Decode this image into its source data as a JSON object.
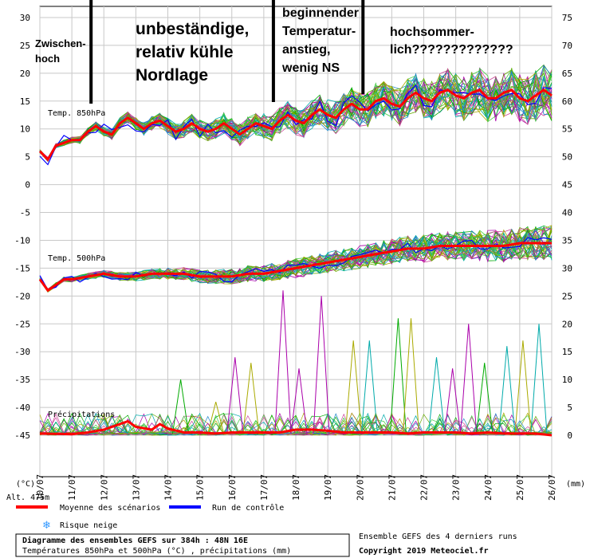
{
  "chart_data": {
    "type": "line",
    "title": "Diagramme des ensembles GEFS sur 384h : 48N 16E",
    "subtitle": "Températures 850hPa et 500hPa (°C) , précipitations (mm)",
    "altitude": "Alt. 475m",
    "left_unit": "(°C)",
    "right_unit": "(mm)",
    "credit_line1": "Ensemble GEFS des 4 derniers runs",
    "credit_line2": "Copyright 2019 Meteociel.fr",
    "legend": {
      "mean": "Moyenne des scénarios",
      "control": "Run de contrôle",
      "snow": "Risque neige"
    },
    "panel_labels": {
      "t850": "Temp. 850hPa",
      "t500": "Temp. 500hPa",
      "precip": "Précipitations"
    },
    "left_axis_ticks": [
      30,
      25,
      20,
      15,
      10,
      5,
      0,
      -5,
      -10,
      -15,
      -20,
      -25,
      -30,
      -35,
      -40,
      -45
    ],
    "right_axis_ticks": [
      75,
      70,
      65,
      60,
      55,
      50,
      45,
      40,
      35,
      30,
      25,
      20,
      15,
      10,
      5,
      0
    ],
    "x_labels": [
      "10/07",
      "11/07",
      "12/07",
      "13/07",
      "14/07",
      "15/07",
      "16/07",
      "17/07",
      "18/07",
      "19/07",
      "20/07",
      "21/07",
      "22/07",
      "23/07",
      "24/07",
      "25/07",
      "26/07"
    ],
    "annotations": [
      {
        "lines": [
          "Zwischen-",
          "hoch"
        ]
      },
      {
        "lines": [
          "unbeständige,",
          "relativ kühle",
          "Nordlage"
        ]
      },
      {
        "lines": [
          "beginnender",
          "Temperatur-",
          "anstieg,",
          "wenig NS"
        ]
      },
      {
        "lines": [
          "hochsommer-",
          "lich?????????????"
        ]
      }
    ],
    "markers_date": [
      11.6,
      17.3,
      20.1
    ],
    "t850_mean": [
      [
        10,
        6
      ],
      [
        10.25,
        4.5
      ],
      [
        10.5,
        7
      ],
      [
        10.75,
        7.5
      ],
      [
        11,
        8
      ],
      [
        11.25,
        8
      ],
      [
        11.5,
        9.5
      ],
      [
        11.75,
        10.5
      ],
      [
        12,
        9.5
      ],
      [
        12.25,
        9
      ],
      [
        12.5,
        11
      ],
      [
        12.75,
        12
      ],
      [
        13,
        11
      ],
      [
        13.25,
        10
      ],
      [
        13.5,
        11
      ],
      [
        13.75,
        11.5
      ],
      [
        14,
        10.5
      ],
      [
        14.25,
        9.5
      ],
      [
        14.5,
        10
      ],
      [
        14.75,
        11
      ],
      [
        15,
        10
      ],
      [
        15.25,
        9.5
      ],
      [
        15.5,
        10
      ],
      [
        15.75,
        11
      ],
      [
        16,
        10
      ],
      [
        16.25,
        9
      ],
      [
        16.5,
        10
      ],
      [
        16.75,
        11
      ],
      [
        17,
        10.5
      ],
      [
        17.25,
        10
      ],
      [
        17.5,
        11.5
      ],
      [
        17.75,
        12.5
      ],
      [
        18,
        11.5
      ],
      [
        18.25,
        11
      ],
      [
        18.5,
        12.5
      ],
      [
        18.75,
        13.5
      ],
      [
        19,
        12.5
      ],
      [
        19.25,
        12
      ],
      [
        19.5,
        13.5
      ],
      [
        19.75,
        14.5
      ],
      [
        20,
        13.5
      ],
      [
        20.25,
        13.5
      ],
      [
        20.5,
        15
      ],
      [
        20.75,
        15.5
      ],
      [
        21,
        14.5
      ],
      [
        21.25,
        14
      ],
      [
        21.5,
        15.5
      ],
      [
        21.75,
        16.5
      ],
      [
        22,
        15.5
      ],
      [
        22.25,
        15
      ],
      [
        22.5,
        16.5
      ],
      [
        22.75,
        17
      ],
      [
        23,
        16
      ],
      [
        23.25,
        15.5
      ],
      [
        23.5,
        16.5
      ],
      [
        23.75,
        17
      ],
      [
        24,
        15.5
      ],
      [
        24.25,
        15.5
      ],
      [
        24.5,
        16.5
      ],
      [
        24.75,
        17
      ],
      [
        25,
        15.5
      ],
      [
        25.25,
        15
      ],
      [
        25.5,
        16
      ],
      [
        25.75,
        17
      ],
      [
        26,
        16
      ]
    ],
    "t500_mean": [
      [
        10,
        -17
      ],
      [
        10.25,
        -19
      ],
      [
        10.5,
        -18
      ],
      [
        10.75,
        -17
      ],
      [
        11,
        -17
      ],
      [
        11.5,
        -16.5
      ],
      [
        12,
        -16
      ],
      [
        12.5,
        -16.5
      ],
      [
        13,
        -16.5
      ],
      [
        13.5,
        -16
      ],
      [
        14,
        -16
      ],
      [
        14.5,
        -16
      ],
      [
        15,
        -16.5
      ],
      [
        15.5,
        -16.5
      ],
      [
        16,
        -16.5
      ],
      [
        16.5,
        -16
      ],
      [
        17,
        -16
      ],
      [
        17.5,
        -15.5
      ],
      [
        18,
        -15
      ],
      [
        18.5,
        -14.5
      ],
      [
        19,
        -14
      ],
      [
        19.5,
        -13.5
      ],
      [
        20,
        -13
      ],
      [
        20.5,
        -12.5
      ],
      [
        21,
        -12
      ],
      [
        21.5,
        -11.5
      ],
      [
        22,
        -11.5
      ],
      [
        22.5,
        -11
      ],
      [
        23,
        -11
      ],
      [
        23.5,
        -11
      ],
      [
        24,
        -11
      ],
      [
        24.5,
        -11
      ],
      [
        25,
        -10.5
      ],
      [
        25.5,
        -10.5
      ],
      [
        26,
        -10.5
      ]
    ],
    "precip_mean": [
      [
        10,
        0.3
      ],
      [
        11,
        0.2
      ],
      [
        11.5,
        0.5
      ],
      [
        12,
        1
      ],
      [
        12.5,
        2
      ],
      [
        12.75,
        2.5
      ],
      [
        13,
        1.5
      ],
      [
        13.5,
        1
      ],
      [
        13.75,
        2
      ],
      [
        14,
        1.2
      ],
      [
        14.5,
        0.5
      ],
      [
        15,
        0.5
      ],
      [
        15.5,
        0.3
      ],
      [
        16,
        0.5
      ],
      [
        16.5,
        0.5
      ],
      [
        17,
        0.5
      ],
      [
        17.5,
        0.5
      ],
      [
        18,
        1
      ],
      [
        18.5,
        1
      ],
      [
        19,
        0.8
      ],
      [
        19.5,
        0.5
      ],
      [
        20,
        0.5
      ],
      [
        20.5,
        0.5
      ],
      [
        21,
        0.5
      ],
      [
        21.5,
        0.3
      ],
      [
        22,
        0.5
      ],
      [
        22.5,
        0.5
      ],
      [
        23,
        0.5
      ],
      [
        23.5,
        0.3
      ],
      [
        24,
        0.5
      ],
      [
        24.5,
        0.3
      ],
      [
        25,
        0.3
      ],
      [
        25.5,
        0.3
      ],
      [
        26,
        0
      ]
    ],
    "precip_peaks": [
      {
        "x": 16.1,
        "y": 14,
        "color": "#aa00aa"
      },
      {
        "x": 16.6,
        "y": 13,
        "color": "#aaaa00"
      },
      {
        "x": 17.6,
        "y": 26,
        "color": "#aa00aa"
      },
      {
        "x": 18.8,
        "y": 25,
        "color": "#aa00aa"
      },
      {
        "x": 19.8,
        "y": 17,
        "color": "#aaaa00"
      },
      {
        "x": 20.3,
        "y": 17,
        "color": "#00aaaa"
      },
      {
        "x": 21.2,
        "y": 21,
        "color": "#00aa00"
      },
      {
        "x": 21.6,
        "y": 21,
        "color": "#aaaa00"
      },
      {
        "x": 22.4,
        "y": 14,
        "color": "#00aaaa"
      },
      {
        "x": 23.4,
        "y": 20,
        "color": "#aa00aa"
      },
      {
        "x": 23.9,
        "y": 13,
        "color": "#00aa00"
      },
      {
        "x": 25.1,
        "y": 17,
        "color": "#aaaa00"
      },
      {
        "x": 25.6,
        "y": 20,
        "color": "#00aaaa"
      },
      {
        "x": 14.4,
        "y": 10,
        "color": "#00aa00"
      },
      {
        "x": 15.5,
        "y": 6,
        "color": "#aaaa00"
      },
      {
        "x": 18.1,
        "y": 12,
        "color": "#aa00aa"
      },
      {
        "x": 22.9,
        "y": 12,
        "color": "#aa00aa"
      },
      {
        "x": 24.6,
        "y": 16,
        "color": "#00aaaa"
      }
    ],
    "colors": {
      "mean": "#ff0000",
      "control": "#0000ff",
      "snow": "#3399ff",
      "members": [
        "#00aa00",
        "#aa00aa",
        "#00aaaa",
        "#aaaa00",
        "#44cc44",
        "#cc4499",
        "#2288cc",
        "#66aa00"
      ]
    }
  }
}
